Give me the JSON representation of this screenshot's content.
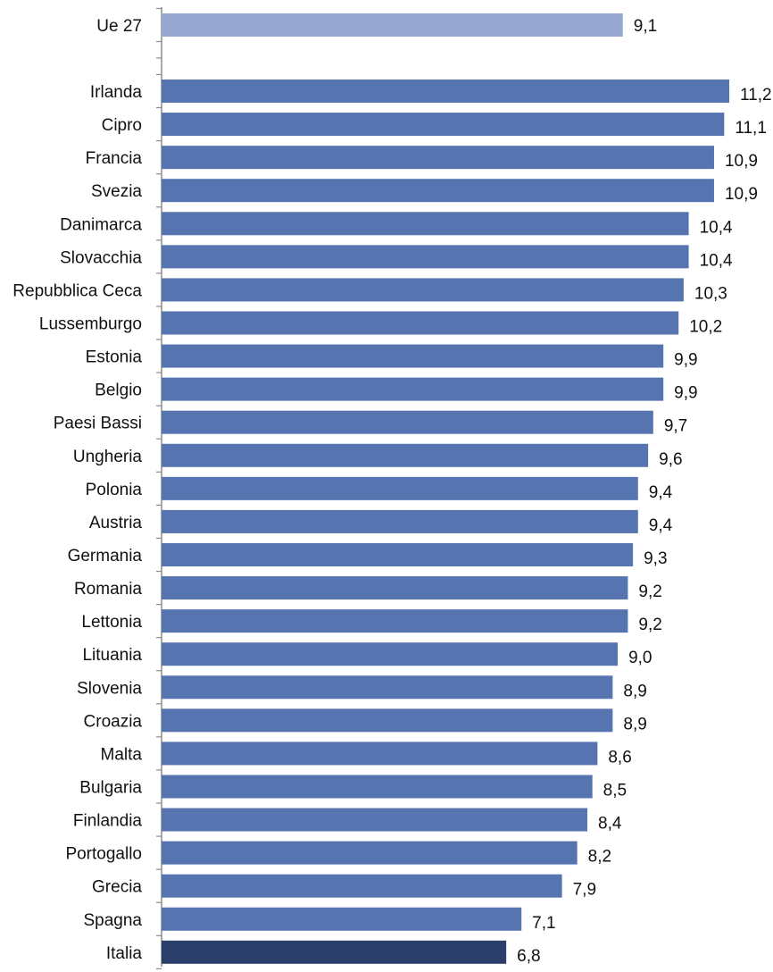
{
  "chart_data": {
    "type": "bar",
    "orientation": "horizontal",
    "title": "",
    "xlabel": "",
    "ylabel": "",
    "grid": false,
    "legend": "none",
    "xlim": [
      0,
      11.2
    ],
    "categories": [
      "Ue 27",
      "Irlanda",
      "Cipro",
      "Francia",
      "Svezia",
      "Danimarca",
      "Slovacchia",
      "Repubblica Ceca",
      "Lussemburgo",
      "Estonia",
      "Belgio",
      "Paesi Bassi",
      "Ungheria",
      "Polonia",
      "Austria",
      "Germania",
      "Romania",
      "Lettonia",
      "Lituania",
      "Slovenia",
      "Croazia",
      "Malta",
      "Bulgaria",
      "Finlandia",
      "Portogallo",
      "Grecia",
      "Spagna",
      "Italia"
    ],
    "values": [
      9.1,
      11.2,
      11.1,
      10.9,
      10.9,
      10.4,
      10.4,
      10.3,
      10.2,
      9.9,
      9.9,
      9.7,
      9.6,
      9.4,
      9.4,
      9.3,
      9.2,
      9.2,
      9.0,
      8.9,
      8.9,
      8.6,
      8.5,
      8.4,
      8.2,
      7.9,
      7.1,
      6.8
    ],
    "value_labels": [
      "9,1",
      "11,2",
      "11,1",
      "10,9",
      "10,9",
      "10,4",
      "10,4",
      "10,3",
      "10,2",
      "9,9",
      "9,9",
      "9,7",
      "9,6",
      "9,4",
      "9,4",
      "9,3",
      "9,2",
      "9,2",
      "9,0",
      "8,9",
      "8,9",
      "8,6",
      "8,5",
      "8,4",
      "8,2",
      "7,9",
      "7,1",
      "6,8"
    ],
    "colors": {
      "Ue 27": "#97a9d2",
      "default": "#5674b0",
      "Italia": "#2c3f6b"
    }
  }
}
